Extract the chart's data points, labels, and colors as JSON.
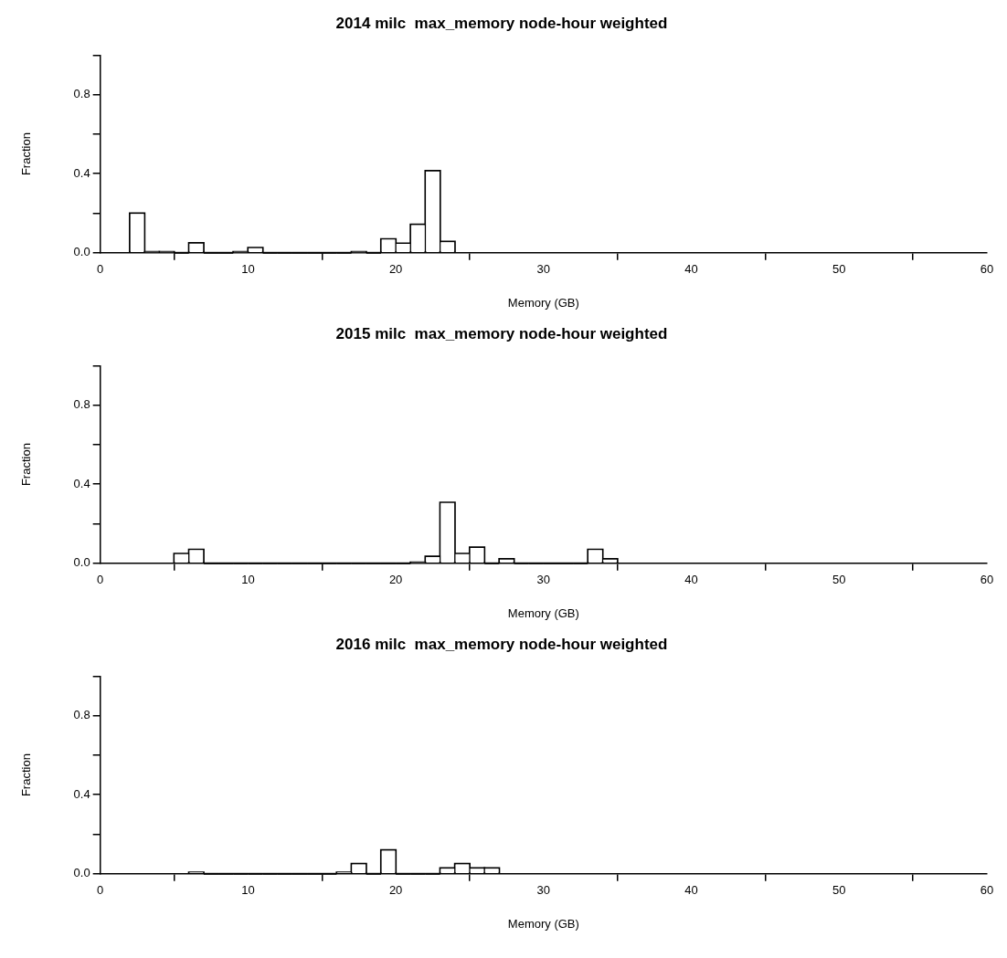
{
  "chart_data": [
    {
      "type": "histogram",
      "title": "2014 milc  max_memory node-hour weighted",
      "xlabel": "Memory (GB)",
      "ylabel": "Fraction",
      "bins": [
        2,
        3,
        4,
        5,
        6,
        7,
        8,
        9,
        10,
        11,
        12,
        13,
        14,
        15,
        16,
        17,
        18,
        19,
        20,
        21,
        22,
        23,
        24
      ],
      "values": [
        0.2,
        0.005,
        0.005,
        0,
        0.05,
        0,
        0,
        0.005,
        0.026,
        0,
        0,
        0,
        0,
        0,
        0,
        0.005,
        0,
        0.07,
        0.048,
        0.143,
        0.415,
        0.057
      ],
      "color": "#ffffff",
      "xlim": [
        0,
        60
      ],
      "xticks": [
        0,
        10,
        20,
        30,
        40,
        50,
        60
      ],
      "ylim": [
        0,
        1
      ],
      "yticks": [
        {
          "value": 0,
          "label": "0.0"
        },
        {
          "value": 0.2,
          "label": null
        },
        {
          "value": 0.4,
          "label": "0.4"
        },
        {
          "value": 0.6,
          "label": null
        },
        {
          "value": 0.8,
          "label": "0.8"
        },
        {
          "value": 1,
          "label": null
        }
      ]
    },
    {
      "type": "histogram",
      "title": "2015 milc  max_memory node-hour weighted",
      "xlabel": "Memory (GB)",
      "ylabel": "Fraction",
      "bins": [
        5,
        6,
        7,
        8,
        9,
        10,
        11,
        12,
        13,
        14,
        15,
        16,
        17,
        18,
        19,
        20,
        21,
        22,
        23,
        24,
        25,
        26,
        27,
        28,
        29,
        30,
        31,
        32,
        33,
        34,
        35
      ],
      "values": [
        0.049,
        0.07,
        0,
        0,
        0,
        0,
        0,
        0,
        0,
        0,
        0,
        0,
        0,
        0,
        0,
        0,
        0.005,
        0.035,
        0.308,
        0.049,
        0.081,
        0,
        0.022,
        0,
        0,
        0,
        0,
        0,
        0.07,
        0.022
      ],
      "color": "#ffffff",
      "xlim": [
        0,
        60
      ],
      "xticks": [
        0,
        10,
        20,
        30,
        40,
        50,
        60
      ],
      "ylim": [
        0,
        1
      ],
      "yticks": [
        {
          "value": 0,
          "label": "0.0"
        },
        {
          "value": 0.2,
          "label": null
        },
        {
          "value": 0.4,
          "label": "0.4"
        },
        {
          "value": 0.6,
          "label": null
        },
        {
          "value": 0.8,
          "label": "0.8"
        },
        {
          "value": 1,
          "label": null
        }
      ]
    },
    {
      "type": "histogram",
      "title": "2016 milc  max_memory node-hour weighted",
      "xlabel": "Memory (GB)",
      "ylabel": "Fraction",
      "bins": [
        6,
        7,
        8,
        9,
        10,
        11,
        12,
        13,
        14,
        15,
        16,
        17,
        18,
        19,
        20,
        21,
        22,
        23,
        24,
        25,
        26,
        27
      ],
      "values": [
        0.007,
        0,
        0,
        0,
        0,
        0,
        0,
        0,
        0,
        0,
        0.007,
        0.051,
        0,
        0.12,
        0,
        0,
        0,
        0.029,
        0.051,
        0.029,
        0.029
      ],
      "color": "#ffffff",
      "xlim": [
        0,
        60
      ],
      "xticks": [
        0,
        10,
        20,
        30,
        40,
        50,
        60
      ],
      "ylim": [
        0,
        1
      ],
      "yticks": [
        {
          "value": 0,
          "label": "0.0"
        },
        {
          "value": 0.2,
          "label": null
        },
        {
          "value": 0.4,
          "label": "0.4"
        },
        {
          "value": 0.6,
          "label": null
        },
        {
          "value": 0.8,
          "label": "0.8"
        },
        {
          "value": 1,
          "label": null
        }
      ]
    }
  ]
}
